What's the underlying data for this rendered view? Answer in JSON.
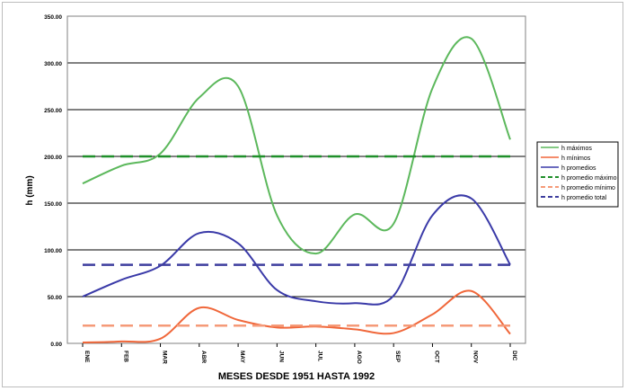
{
  "chart_data": {
    "type": "line",
    "xlabel": "MESES DESDE 1951 HASTA 1992",
    "ylabel": "h (mm)",
    "ylim": [
      0,
      350
    ],
    "yticks": [
      0,
      50,
      100,
      150,
      200,
      250,
      300,
      350
    ],
    "ytick_labels": [
      "0.00",
      "50.00",
      "100.00",
      "150.00",
      "200.00",
      "250.00",
      "300.00",
      "350.00"
    ],
    "categories": [
      "ENE",
      "FEB",
      "MAR",
      "ABR",
      "MAY",
      "JUN",
      "JUL",
      "AGO",
      "SEP",
      "OCT",
      "NOV",
      "DIC"
    ],
    "grid": true,
    "legend_position": "right",
    "series": [
      {
        "name": "h máximos",
        "color": "#5cb85c",
        "dash": "solid",
        "values": [
          171,
          190,
          203,
          263,
          275,
          137,
          96,
          138,
          128,
          273,
          326,
          218
        ]
      },
      {
        "name": "h mínimos",
        "color": "#f0673a",
        "dash": "solid",
        "values": [
          1,
          2,
          5,
          38,
          25,
          17,
          18,
          15,
          11,
          31,
          56,
          10
        ]
      },
      {
        "name": "h promedios",
        "color": "#3a3aa8",
        "dash": "solid",
        "values": [
          50,
          68,
          83,
          118,
          107,
          57,
          45,
          43,
          51,
          137,
          155,
          84
        ]
      },
      {
        "name": "h promedio máximo",
        "color": "#1f8f2a",
        "dash": "dashed",
        "values": [
          200,
          200,
          200,
          200,
          200,
          200,
          200,
          200,
          200,
          200,
          200,
          200
        ]
      },
      {
        "name": "h promedio mínimo",
        "color": "#f59a78",
        "dash": "dashed",
        "values": [
          19,
          19,
          19,
          19,
          19,
          19,
          19,
          19,
          19,
          19,
          19,
          19
        ]
      },
      {
        "name": "h promedio total",
        "color": "#3f3f9f",
        "dash": "dashed",
        "values": [
          84,
          84,
          84,
          84,
          84,
          84,
          84,
          84,
          84,
          84,
          84,
          84
        ]
      }
    ]
  }
}
